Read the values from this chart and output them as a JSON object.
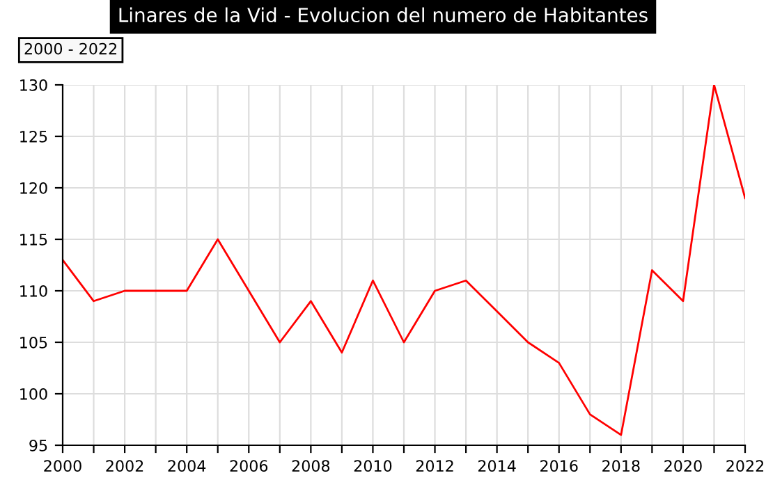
{
  "chart_data": {
    "type": "line",
    "title": "Linares de la Vid - Evolucion del numero de Habitantes",
    "annotations": [
      "2000 - 2022"
    ],
    "x": [
      2000,
      2001,
      2002,
      2003,
      2004,
      2005,
      2006,
      2007,
      2008,
      2009,
      2010,
      2011,
      2012,
      2013,
      2014,
      2015,
      2016,
      2017,
      2018,
      2019,
      2020,
      2021,
      2022
    ],
    "series": [
      {
        "color": "#ff0000",
        "values": [
          113,
          109,
          110,
          110,
          110,
          115,
          110,
          105,
          109,
          104,
          111,
          105,
          110,
          111,
          108,
          105,
          103,
          98,
          96,
          112,
          109,
          130,
          119
        ]
      }
    ],
    "xlim": [
      2000,
      2022
    ],
    "xticks": [
      2000,
      {
        "value": 2001,
        "label": null
      },
      2002,
      {
        "value": 2003,
        "label": null
      },
      2004,
      {
        "value": 2005,
        "label": null
      },
      2006,
      {
        "value": 2007,
        "label": null
      },
      2008,
      {
        "value": 2009,
        "label": null
      },
      2010,
      {
        "value": 2011,
        "label": null
      },
      2012,
      {
        "value": 2013,
        "label": null
      },
      2014,
      {
        "value": 2015,
        "label": null
      },
      2016,
      {
        "value": 2017,
        "label": null
      },
      2018,
      {
        "value": 2019,
        "label": null
      },
      2020,
      {
        "value": 2021,
        "label": null
      },
      2022
    ],
    "ylim": [
      95,
      130
    ],
    "yticks": [
      95,
      100,
      105,
      110,
      115,
      120,
      125,
      130
    ],
    "grid": true,
    "marker": "none",
    "line_style": "solid"
  }
}
